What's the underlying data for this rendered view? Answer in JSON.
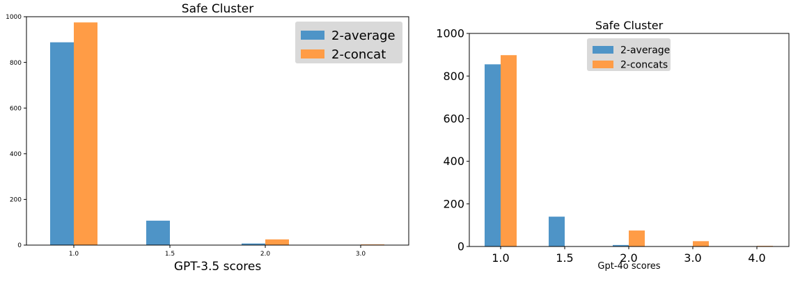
{
  "chart_data": [
    {
      "type": "bar",
      "title": "Safe Cluster",
      "xlabel": "GPT-3.5 scores",
      "ylabel": "",
      "categories": [
        "1.0",
        "1.5",
        "2.0",
        "3.0"
      ],
      "ylim": [
        0,
        1000
      ],
      "yticks": [
        "0",
        "200",
        "400",
        "600",
        "800",
        "1000"
      ],
      "series": [
        {
          "name": "2-average",
          "color": "#4e94c7",
          "values": [
            888,
            107,
            7,
            0
          ]
        },
        {
          "name": "2-concat",
          "color": "#ff9c46",
          "values": [
            975,
            0,
            25,
            3
          ]
        }
      ],
      "legend": "top-right",
      "grid": false
    },
    {
      "type": "bar",
      "title": "Safe Cluster",
      "xlabel": "Gpt-4o scores",
      "ylabel": "",
      "categories": [
        "1.0",
        "1.5",
        "2.0",
        "3.0",
        "4.0"
      ],
      "ylim": [
        0,
        1000
      ],
      "yticks": [
        "0",
        "200",
        "400",
        "600",
        "800",
        "1000"
      ],
      "series": [
        {
          "name": "2-average",
          "color": "#4e94c7",
          "values": [
            855,
            140,
            7,
            0,
            0
          ]
        },
        {
          "name": "2-concats",
          "color": "#ff9c46",
          "values": [
            898,
            0,
            75,
            25,
            3
          ]
        }
      ],
      "legend": "top-center",
      "grid": false
    }
  ]
}
